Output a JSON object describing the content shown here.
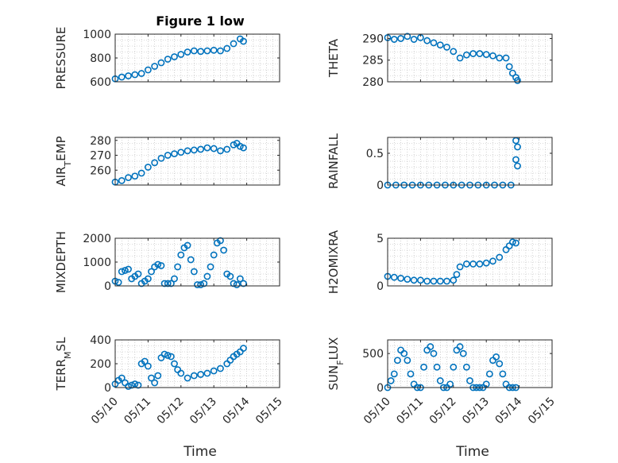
{
  "title": "Figure 1 low",
  "colors": {
    "marker": "#0072BD",
    "axis": "#262626",
    "grid": "#b5b5b5"
  },
  "chart_data": [
    {
      "type": "scatter",
      "ylabel": "PRESSURE",
      "xlim": [
        "05/10",
        "05/15"
      ],
      "ylim": [
        600,
        1000
      ],
      "yticks": [
        600,
        800,
        1000
      ],
      "xticks": [
        "05/10",
        "05/11",
        "05/12",
        "05/13",
        "05/14",
        "05/15"
      ],
      "grid": true,
      "marker": "circle",
      "series": [
        {
          "x": [
            0,
            0.2,
            0.4,
            0.6,
            0.8,
            1.0,
            1.2,
            1.4,
            1.6,
            1.8,
            2.0,
            2.2,
            2.4,
            2.6,
            2.8,
            3.0,
            3.2,
            3.4,
            3.6,
            3.8,
            3.9
          ],
          "y": [
            625,
            640,
            650,
            660,
            670,
            700,
            730,
            760,
            790,
            810,
            830,
            850,
            860,
            855,
            860,
            865,
            860,
            880,
            920,
            960,
            940
          ]
        }
      ]
    },
    {
      "type": "scatter",
      "ylabel": "THETA",
      "xlim": [
        "05/10",
        "05/15"
      ],
      "ylim": [
        280,
        291
      ],
      "yticks": [
        280,
        285,
        290
      ],
      "xticks": [
        "05/10",
        "05/11",
        "05/12",
        "05/13",
        "05/14",
        "05/15"
      ],
      "grid": true,
      "marker": "circle",
      "series": [
        {
          "x": [
            0,
            0.2,
            0.4,
            0.6,
            0.8,
            1.0,
            1.2,
            1.4,
            1.6,
            1.8,
            2.0,
            2.2,
            2.4,
            2.6,
            2.8,
            3.0,
            3.2,
            3.4,
            3.6,
            3.7,
            3.8,
            3.9,
            3.95
          ],
          "y": [
            290.2,
            289.8,
            290.0,
            290.5,
            289.8,
            290.2,
            289.5,
            289.0,
            288.5,
            288.0,
            287.0,
            285.5,
            286.2,
            286.5,
            286.5,
            286.3,
            286.0,
            285.5,
            285.5,
            283.5,
            282.0,
            281.0,
            280.3
          ]
        }
      ]
    },
    {
      "type": "scatter",
      "ylabel": "AIR_TEMP",
      "xlim": [
        "05/10",
        "05/15"
      ],
      "ylim": [
        250,
        282
      ],
      "yticks": [
        260,
        270,
        280
      ],
      "xticks": [
        "05/10",
        "05/11",
        "05/12",
        "05/13",
        "05/14",
        "05/15"
      ],
      "grid": true,
      "marker": "circle",
      "series": [
        {
          "x": [
            0,
            0.2,
            0.4,
            0.6,
            0.8,
            1.0,
            1.2,
            1.4,
            1.6,
            1.8,
            2.0,
            2.2,
            2.4,
            2.6,
            2.8,
            3.0,
            3.2,
            3.4,
            3.6,
            3.7,
            3.8,
            3.9
          ],
          "y": [
            252,
            253,
            255,
            256,
            258,
            262,
            265,
            268,
            270,
            271,
            272,
            273,
            273.5,
            274,
            275,
            274.5,
            273,
            274,
            277,
            278,
            276,
            275
          ]
        }
      ]
    },
    {
      "type": "scatter",
      "ylabel": "RAINFALL",
      "xlim": [
        "05/10",
        "05/15"
      ],
      "ylim": [
        0,
        0.75
      ],
      "yticks": [
        0,
        0.5
      ],
      "xticks": [
        "05/10",
        "05/11",
        "05/12",
        "05/13",
        "05/14",
        "05/15"
      ],
      "grid": true,
      "marker": "circle",
      "series": [
        {
          "x": [
            0,
            0.25,
            0.5,
            0.75,
            1.0,
            1.25,
            1.5,
            1.75,
            2.0,
            2.25,
            2.5,
            2.75,
            3.0,
            3.25,
            3.5,
            3.75,
            3.9,
            3.9,
            3.95,
            3.95
          ],
          "y": [
            0,
            0,
            0,
            0,
            0,
            0,
            0,
            0,
            0,
            0,
            0,
            0,
            0,
            0,
            0,
            0,
            0.7,
            0.4,
            0.6,
            0.3
          ]
        }
      ]
    },
    {
      "type": "scatter",
      "ylabel": "MIXDEPTH",
      "xlim": [
        "05/10",
        "05/15"
      ],
      "ylim": [
        0,
        2000
      ],
      "yticks": [
        0,
        1000,
        2000
      ],
      "xticks": [
        "05/10",
        "05/11",
        "05/12",
        "05/13",
        "05/14",
        "05/15"
      ],
      "grid": true,
      "marker": "circle",
      "series": [
        {
          "x": [
            0,
            0.1,
            0.2,
            0.3,
            0.4,
            0.5,
            0.6,
            0.7,
            0.8,
            0.9,
            1.0,
            1.1,
            1.2,
            1.3,
            1.4,
            1.5,
            1.6,
            1.7,
            1.8,
            1.9,
            2.0,
            2.1,
            2.2,
            2.3,
            2.4,
            2.5,
            2.6,
            2.7,
            2.8,
            2.9,
            3.0,
            3.1,
            3.2,
            3.3,
            3.4,
            3.5,
            3.6,
            3.7,
            3.8,
            3.9
          ],
          "y": [
            200,
            150,
            600,
            650,
            700,
            300,
            400,
            500,
            100,
            200,
            300,
            600,
            800,
            900,
            850,
            100,
            100,
            100,
            300,
            800,
            1300,
            1600,
            1700,
            1100,
            600,
            50,
            50,
            100,
            400,
            800,
            1300,
            1800,
            1900,
            1500,
            500,
            400,
            100,
            50,
            300,
            100
          ]
        }
      ]
    },
    {
      "type": "scatter",
      "ylabel": "H2OMIXRA",
      "xlim": [
        "05/10",
        "05/15"
      ],
      "ylim": [
        0,
        5
      ],
      "yticks": [
        0,
        5
      ],
      "xticks": [
        "05/10",
        "05/11",
        "05/12",
        "05/13",
        "05/14",
        "05/15"
      ],
      "grid": true,
      "marker": "circle",
      "series": [
        {
          "x": [
            0,
            0.2,
            0.4,
            0.6,
            0.8,
            1.0,
            1.2,
            1.4,
            1.6,
            1.8,
            2.0,
            2.1,
            2.2,
            2.4,
            2.6,
            2.8,
            3.0,
            3.2,
            3.4,
            3.6,
            3.7,
            3.8,
            3.9
          ],
          "y": [
            1.0,
            0.9,
            0.8,
            0.7,
            0.6,
            0.6,
            0.5,
            0.5,
            0.5,
            0.5,
            0.6,
            1.2,
            2.0,
            2.3,
            2.3,
            2.3,
            2.4,
            2.6,
            3.0,
            3.8,
            4.2,
            4.6,
            4.5
          ]
        }
      ]
    },
    {
      "type": "scatter",
      "ylabel": "TERR_MSL",
      "xlim": [
        "05/10",
        "05/15"
      ],
      "ylim": [
        0,
        400
      ],
      "yticks": [
        0,
        200,
        400
      ],
      "xticks": [
        "05/10",
        "05/11",
        "05/12",
        "05/13",
        "05/14",
        "05/15"
      ],
      "grid": true,
      "marker": "circle",
      "series": [
        {
          "x": [
            0,
            0.1,
            0.2,
            0.3,
            0.4,
            0.5,
            0.6,
            0.7,
            0.8,
            0.9,
            1.0,
            1.1,
            1.2,
            1.3,
            1.4,
            1.5,
            1.6,
            1.7,
            1.8,
            1.9,
            2.0,
            2.2,
            2.4,
            2.6,
            2.8,
            3.0,
            3.2,
            3.4,
            3.5,
            3.6,
            3.7,
            3.8,
            3.9
          ],
          "y": [
            30,
            60,
            80,
            40,
            10,
            20,
            30,
            20,
            200,
            220,
            180,
            80,
            40,
            100,
            250,
            280,
            270,
            260,
            200,
            150,
            120,
            80,
            100,
            110,
            120,
            140,
            160,
            200,
            230,
            260,
            280,
            300,
            330
          ]
        }
      ]
    },
    {
      "type": "scatter",
      "ylabel": "SUN_FLUX",
      "xlim": [
        "05/10",
        "05/15"
      ],
      "ylim": [
        0,
        700
      ],
      "yticks": [
        0,
        500
      ],
      "xticks": [
        "05/10",
        "05/11",
        "05/12",
        "05/13",
        "05/14",
        "05/15"
      ],
      "grid": true,
      "marker": "circle",
      "series": [
        {
          "x": [
            0,
            0.1,
            0.2,
            0.3,
            0.4,
            0.5,
            0.6,
            0.7,
            0.8,
            0.9,
            1.0,
            1.1,
            1.2,
            1.3,
            1.4,
            1.5,
            1.6,
            1.7,
            1.8,
            1.9,
            2.0,
            2.1,
            2.2,
            2.3,
            2.4,
            2.5,
            2.6,
            2.7,
            2.8,
            2.9,
            3.0,
            3.1,
            3.2,
            3.3,
            3.4,
            3.5,
            3.6,
            3.7,
            3.8,
            3.9
          ],
          "y": [
            0,
            100,
            200,
            400,
            550,
            500,
            400,
            200,
            50,
            0,
            0,
            300,
            550,
            600,
            500,
            300,
            100,
            0,
            0,
            50,
            300,
            550,
            600,
            500,
            300,
            100,
            0,
            0,
            0,
            0,
            50,
            200,
            400,
            450,
            350,
            200,
            50,
            0,
            0,
            0
          ]
        }
      ]
    }
  ]
}
